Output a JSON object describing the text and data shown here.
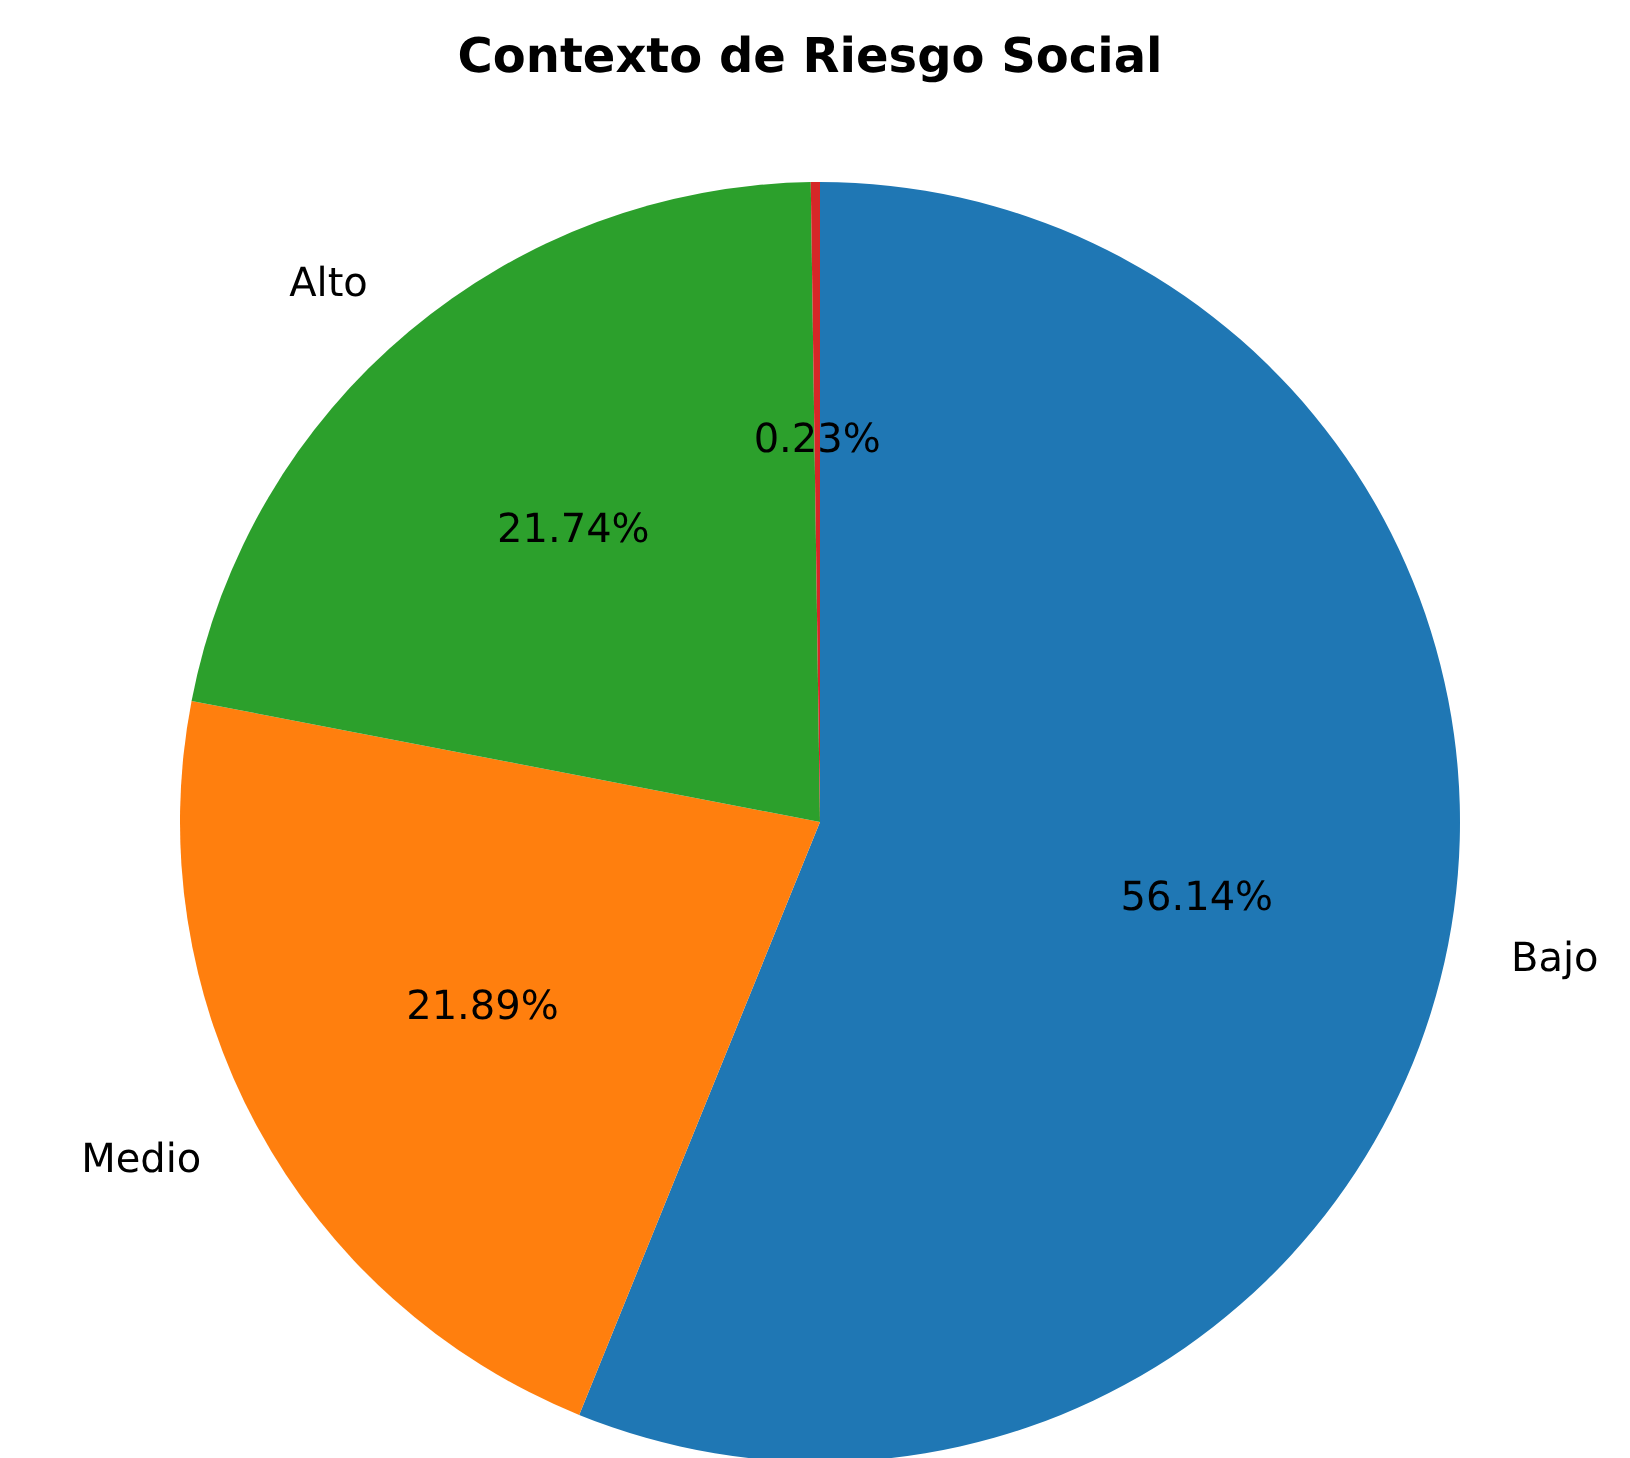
{
  "chart_data": {
    "type": "pie",
    "title": "Contexto de Riesgo Social",
    "categories": [
      "Bajo",
      "Medio",
      "Alto",
      null
    ],
    "values": [
      56.14,
      21.89,
      21.74,
      0.23
    ],
    "colors": [
      "#1f77b4",
      "#ff7f0e",
      "#2ca02c",
      "#d62728"
    ],
    "value_labels": [
      "56.14%",
      "21.89%",
      "21.74%",
      "0.23%"
    ],
    "legend": false
  }
}
